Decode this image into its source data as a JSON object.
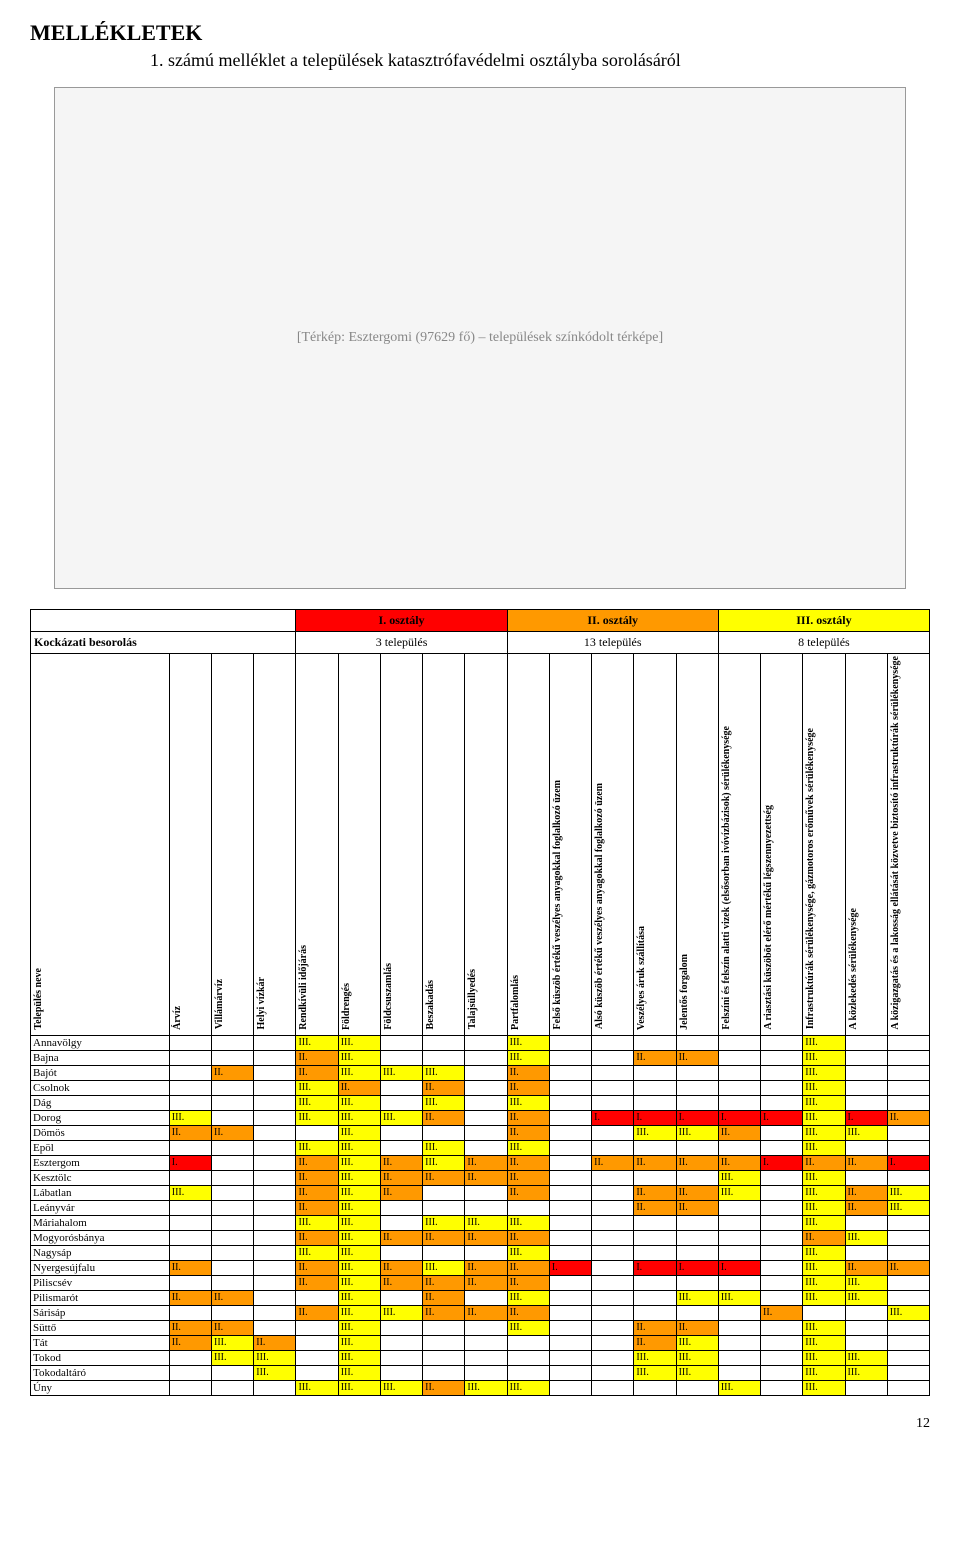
{
  "page_title": "MELLÉKLETEK",
  "subtitle": "1. számú melléklet a települések katasztrófavédelmi osztályba sorolásáról",
  "map_placeholder_text": "[Térkép: Esztergomi (97629 fő) – települések színkódolt térképe]",
  "class_header_label": "",
  "classes": {
    "I": {
      "label": "I. osztály",
      "count": "3 település",
      "bg": "#ff0000"
    },
    "II": {
      "label": "II. osztály",
      "count": "13 település",
      "bg": "#ff9900"
    },
    "III": {
      "label": "III. osztály",
      "count": "8 település",
      "bg": "#ffff00"
    }
  },
  "risk_label": "Kockázati besorolás",
  "columns": [
    "Település neve",
    "Árvíz",
    "Villámárvíz",
    "Helyi vízkár",
    "Rendkívüli időjárás",
    "Földrengés",
    "Földcsuszamlás",
    "Beszakadás",
    "Talajsüllyedés",
    "Partfalomlás",
    "Felső küszöb értékű veszélyes anyagokkal foglalkozó üzem",
    "Alsó küszöb értékű veszélyes anyagokkal foglalkozó üzem",
    "Veszélyes áruk szállítása",
    "Jelentős forgalom",
    "Felszíni és felszín alatti vizek (elsősorban ivóvízbázisok) sérülékenysége",
    "A riasztási küszöböt elérő mértékű légszennyezettség",
    "Infrastruktúrák sérülékenysége, gázmotoros erőművek sérülékenysége",
    "A közlekedés sérülékenysége",
    "A közigazgatás és a lakosság ellátását közvetve biztosító infrastruktúrák sérülékenysége"
  ],
  "value_colors": {
    "I.": "#ff0000",
    "II.": "#ff9900",
    "III.": "#ffff00"
  },
  "rows": [
    {
      "name": "Annavölgy",
      "v": [
        "",
        "",
        "",
        "III.",
        "III.",
        "",
        "",
        "",
        "III.",
        "",
        "",
        "",
        "",
        "",
        "",
        "III.",
        "",
        ""
      ]
    },
    {
      "name": "Bajna",
      "v": [
        "",
        "",
        "",
        "II.",
        "III.",
        "",
        "",
        "",
        "III.",
        "",
        "",
        "II.",
        "II.",
        "",
        "",
        "III.",
        "",
        ""
      ]
    },
    {
      "name": "Bajót",
      "v": [
        "",
        "II.",
        "",
        "II.",
        "III.",
        "III.",
        "III.",
        "",
        "II.",
        "",
        "",
        "",
        "",
        "",
        "",
        "III.",
        "",
        ""
      ]
    },
    {
      "name": "Csolnok",
      "v": [
        "",
        "",
        "",
        "III.",
        "II.",
        "",
        "II.",
        "",
        "II.",
        "",
        "",
        "",
        "",
        "",
        "",
        "III.",
        "",
        ""
      ]
    },
    {
      "name": "Dág",
      "v": [
        "",
        "",
        "",
        "III.",
        "III.",
        "",
        "III.",
        "",
        "III.",
        "",
        "",
        "",
        "",
        "",
        "",
        "III.",
        "",
        ""
      ]
    },
    {
      "name": "Dorog",
      "v": [
        "III.",
        "",
        "",
        "III.",
        "III.",
        "III.",
        "II.",
        "",
        "II.",
        "",
        "I.",
        "I.",
        "I.",
        "I.",
        "I.",
        "III.",
        "I.",
        "II."
      ]
    },
    {
      "name": "Dömös",
      "v": [
        "II.",
        "II.",
        "",
        "",
        "III.",
        "",
        "",
        "",
        "II.",
        "",
        "",
        "III.",
        "III.",
        "II.",
        "",
        "III.",
        "III.",
        ""
      ]
    },
    {
      "name": "Epöl",
      "v": [
        "",
        "",
        "",
        "III.",
        "III.",
        "",
        "III.",
        "",
        "III.",
        "",
        "",
        "",
        "",
        "",
        "",
        "III.",
        "",
        ""
      ]
    },
    {
      "name": "Esztergom",
      "v": [
        "I.",
        "",
        "",
        "II.",
        "III.",
        "II.",
        "III.",
        "II.",
        "II.",
        "",
        "II.",
        "II.",
        "II.",
        "II.",
        "I.",
        "II.",
        "II.",
        "I."
      ]
    },
    {
      "name": "Kesztölc",
      "v": [
        "",
        "",
        "",
        "II.",
        "III.",
        "II.",
        "II.",
        "II.",
        "II.",
        "",
        "",
        "",
        "",
        "III.",
        "",
        "III.",
        "",
        ""
      ]
    },
    {
      "name": "Lábatlan",
      "v": [
        "III.",
        "",
        "",
        "II.",
        "III.",
        "II.",
        "",
        "",
        "II.",
        "",
        "",
        "II.",
        "II.",
        "III.",
        "",
        "III.",
        "II.",
        "III."
      ]
    },
    {
      "name": "Leányvár",
      "v": [
        "",
        "",
        "",
        "II.",
        "III.",
        "",
        "",
        "",
        "",
        "",
        "",
        "II.",
        "II.",
        "",
        "",
        "III.",
        "II.",
        "III."
      ]
    },
    {
      "name": "Máriahalom",
      "v": [
        "",
        "",
        "",
        "III.",
        "III.",
        "",
        "III.",
        "III.",
        "III.",
        "",
        "",
        "",
        "",
        "",
        "",
        "III.",
        "",
        ""
      ]
    },
    {
      "name": "Mogyorósbánya",
      "v": [
        "",
        "",
        "",
        "II.",
        "III.",
        "II.",
        "II.",
        "II.",
        "II.",
        "",
        "",
        "",
        "",
        "",
        "",
        "II.",
        "III.",
        ""
      ]
    },
    {
      "name": "Nagysáp",
      "v": [
        "",
        "",
        "",
        "III.",
        "III.",
        "",
        "",
        "",
        "III.",
        "",
        "",
        "",
        "",
        "",
        "",
        "III.",
        "",
        ""
      ]
    },
    {
      "name": "Nyergesújfalu",
      "v": [
        "II.",
        "",
        "",
        "II.",
        "III.",
        "II.",
        "III.",
        "II.",
        "II.",
        "I.",
        "",
        "I.",
        "I.",
        "I.",
        "",
        "III.",
        "II.",
        "II."
      ]
    },
    {
      "name": "Piliscsév",
      "v": [
        "",
        "",
        "",
        "II.",
        "III.",
        "II.",
        "II.",
        "II.",
        "II.",
        "",
        "",
        "",
        "",
        "",
        "",
        "III.",
        "III.",
        ""
      ]
    },
    {
      "name": "Pilismarót",
      "v": [
        "II.",
        "II.",
        "",
        "",
        "III.",
        "",
        "II.",
        "",
        "III.",
        "",
        "",
        "",
        "III.",
        "III.",
        "",
        "III.",
        "III.",
        ""
      ]
    },
    {
      "name": "Sárisáp",
      "v": [
        "",
        "",
        "",
        "II.",
        "III.",
        "III.",
        "II.",
        "II.",
        "II.",
        "",
        "",
        "",
        "",
        "",
        "II.",
        "",
        "",
        "III."
      ]
    },
    {
      "name": "Süttő",
      "v": [
        "II.",
        "II.",
        "",
        "",
        "III.",
        "",
        "",
        "",
        "III.",
        "",
        "",
        "II.",
        "II.",
        "",
        "",
        "III.",
        "",
        ""
      ]
    },
    {
      "name": "Tát",
      "v": [
        "II.",
        "III.",
        "II.",
        "",
        "III.",
        "",
        "",
        "",
        "",
        "",
        "",
        "II.",
        "III.",
        "",
        "",
        "III.",
        "",
        ""
      ]
    },
    {
      "name": "Tokod",
      "v": [
        "",
        "III.",
        "III.",
        "",
        "III.",
        "",
        "",
        "",
        "",
        "",
        "",
        "III.",
        "III.",
        "",
        "",
        "III.",
        "III.",
        ""
      ]
    },
    {
      "name": "Tokodaltáró",
      "v": [
        "",
        "",
        "III.",
        "",
        "III.",
        "",
        "",
        "",
        "",
        "",
        "",
        "III.",
        "III.",
        "",
        "",
        "III.",
        "III.",
        ""
      ]
    },
    {
      "name": "Úny",
      "v": [
        "",
        "",
        "",
        "III.",
        "III.",
        "III.",
        "II.",
        "III.",
        "III.",
        "",
        "",
        "",
        "",
        "III.",
        "",
        "III.",
        "",
        ""
      ]
    }
  ],
  "page_number": "12"
}
